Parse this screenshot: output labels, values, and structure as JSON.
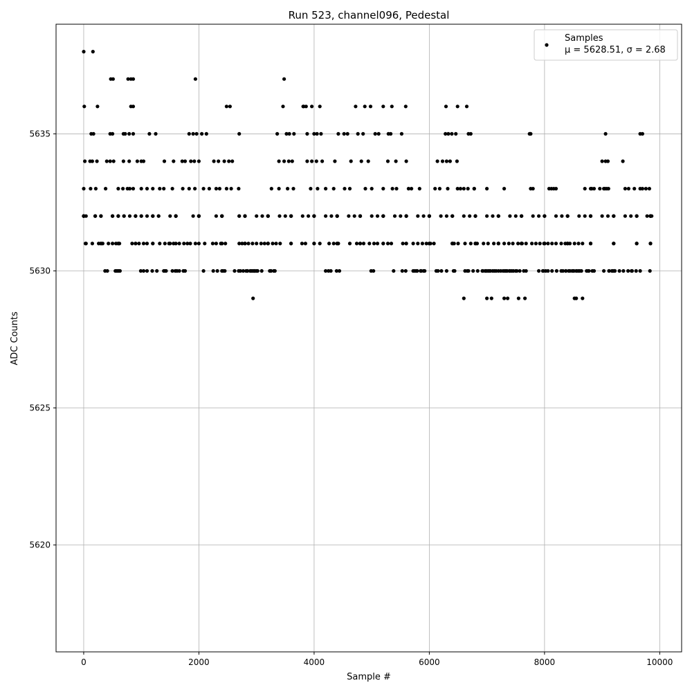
{
  "chart_data": {
    "type": "scatter",
    "title": "Run 523, channel096, Pedestal",
    "xlabel": "Sample #",
    "ylabel": "ADC Counts",
    "xlim": [
      -480,
      10380
    ],
    "ylim": [
      5616.1,
      5639.0
    ],
    "xticks": [
      0,
      2000,
      4000,
      6000,
      8000,
      10000
    ],
    "xtick_labels": [
      "0",
      "2000",
      "4000",
      "6000",
      "8000",
      "10000"
    ],
    "yticks": [
      5620,
      5625,
      5630,
      5635
    ],
    "ytick_labels": [
      "5620",
      "5625",
      "5630",
      "5635"
    ],
    "grid": true,
    "marker_color": "#000000",
    "legend": {
      "placement": "top-right",
      "entry": "Samples",
      "stats": "μ = 5628.51, σ = 2.68"
    },
    "series": [
      {
        "name": "Samples",
        "x": [
          0,
          160,
          770,
          1940,
          470,
          510,
          820,
          860,
          3480,
          3810,
          5350,
          6290,
          6490,
          10,
          240,
          820,
          860,
          2480,
          2540,
          3460,
          3820,
          3860,
          3960,
          4100,
          4720,
          4880,
          4980,
          5200,
          5590,
          6650,
          7750,
          9060,
          9660,
          9700,
          130,
          170,
          460,
          500,
          690,
          720,
          790,
          860,
          1140,
          1250,
          1830,
          1900,
          1960,
          2050,
          2130,
          2700,
          3360,
          3520,
          3570,
          3650,
          3880,
          4000,
          4050,
          4120,
          4420,
          4520,
          4580,
          4760,
          4850,
          5060,
          5120,
          5290,
          5330,
          5520,
          6280,
          6330,
          6390,
          6460,
          6680,
          6720,
          7740,
          7760,
          9000,
          9060,
          9100,
          9360,
          20,
          110,
          150,
          230,
          400,
          460,
          520,
          690,
          790,
          930,
          1000,
          1040,
          1400,
          1560,
          1710,
          1760,
          1860,
          1920,
          2000,
          2260,
          2340,
          2440,
          2520,
          2580,
          3390,
          3480,
          3560,
          3620,
          3880,
          3960,
          4040,
          4140,
          4360,
          4640,
          4820,
          4940,
          5280,
          5420,
          5600,
          6140,
          6230,
          6300,
          6360,
          6480,
          6600,
          6780,
          7760,
          8080,
          8200,
          8700,
          8800,
          9030,
          9080,
          9560,
          9660,
          9760,
          9820,
          0,
          120,
          210,
          380,
          600,
          680,
          760,
          800,
          860,
          1000,
          1100,
          1200,
          1320,
          1390,
          1540,
          1720,
          1830,
          1930,
          2080,
          2180,
          2300,
          2360,
          2480,
          2560,
          2690,
          3260,
          3390,
          3540,
          3640,
          3940,
          4060,
          4200,
          4340,
          4530,
          4620,
          4890,
          5000,
          5200,
          5360,
          5430,
          5640,
          5690,
          5830,
          6100,
          6180,
          6320,
          6490,
          6540,
          6670,
          6780,
          7000,
          7300,
          7800,
          8120,
          8160,
          8820,
          8860,
          8960,
          9050,
          9110,
          9400,
          9460,
          9700,
          9780,
          9860,
          0,
          200,
          500,
          700,
          1000,
          1300,
          1600,
          2000,
          2400,
          2800,
          3200,
          3600,
          4000,
          4400,
          4800,
          5200,
          5600,
          6000,
          6400,
          6800,
          7200,
          7600,
          8000,
          8400,
          8800,
          9200,
          9600,
          9840,
          0,
          200,
          500,
          700,
          1000,
          1300,
          1600,
          2000,
          2400,
          2700,
          3000,
          3400,
          3800,
          4200,
          4600,
          5000,
          5400,
          5800,
          6200,
          6600,
          7000,
          7400,
          7800,
          8200,
          8600,
          9000,
          9400,
          9840,
          0,
          200,
          500,
          800,
          1100,
          1500,
          1900,
          2300,
          2700,
          3100,
          3500,
          3900,
          4300,
          4700,
          5100,
          5500,
          5900,
          6300,
          6700,
          7100,
          7500,
          7900,
          8300,
          8700,
          9100,
          9500,
          9840,
          0,
          300,
          600,
          900,
          1200,
          1600,
          2000,
          2400,
          2800,
          3200,
          3600,
          4000,
          4400,
          4800,
          5200,
          5600,
          6000,
          6400,
          6800,
          7200,
          7600,
          8000,
          8400,
          8800,
          9200,
          9600,
          9840,
          0,
          300,
          600,
          900,
          1200,
          1600,
          2000,
          2400,
          2800,
          3200,
          3600,
          4000,
          4400,
          4800,
          5200,
          5600,
          6000,
          6400,
          6800,
          7200,
          7600,
          8000,
          8400,
          8800,
          9200,
          9600,
          9840,
          40,
          300,
          600,
          900,
          1200,
          1600,
          2000,
          2400,
          2800,
          3200,
          3600,
          4000,
          4400,
          4800,
          5200,
          5600,
          6000,
          6400,
          6800,
          7200,
          7600,
          8000,
          8400,
          8800,
          9200,
          9600,
          9840,
          30,
          300,
          600,
          900,
          1200,
          1600,
          2000,
          2400,
          2800,
          3200,
          3600,
          4000,
          4400,
          4800,
          5200,
          5600,
          6000,
          6400,
          6800,
          7200,
          7600,
          8000,
          8400,
          8800,
          9200,
          9600,
          9840,
          40,
          300,
          600,
          900,
          1200,
          1500,
          1800,
          2100,
          2400,
          2800,
          3200,
          3600,
          4000,
          4400,
          4800,
          5200,
          5600,
          6000,
          6400,
          6800,
          7200,
          7600,
          8000,
          8400,
          8800,
          9200,
          9600,
          9840,
          150,
          260,
          330,
          430,
          500,
          560,
          620,
          840,
          960,
          1040,
          1100,
          1320,
          1410,
          1480,
          1560,
          1660,
          1740,
          1850,
          1940,
          2240,
          2300,
          2380,
          2460,
          2700,
          2750,
          2800,
          2860,
          2930,
          3000,
          3080,
          3140,
          3200,
          3280,
          3340,
          3410,
          3790,
          3850,
          4100,
          4260,
          4340,
          4420,
          4620,
          4740,
          4860,
          4960,
          5040,
          5100,
          5280,
          5340,
          5540,
          5720,
          5800,
          5880,
          5950,
          6020,
          6080,
          6430,
          6500,
          6620,
          6720,
          6830,
          6940,
          7020,
          7120,
          7200,
          7300,
          7380,
          7450,
          7540,
          7610,
          7680,
          7780,
          7850,
          7920,
          7990,
          8060,
          8130,
          8200,
          8290,
          8360,
          8440,
          8520,
          8590,
          8660,
          8730,
          9030,
          9120,
          9220,
          9300,
          9370,
          9450,
          9520,
          9590,
          9660,
          9830,
          370,
          410,
          550,
          590,
          630,
          990,
          1040,
          1100,
          1270,
          1390,
          1430,
          1540,
          1590,
          1760,
          2250,
          2320,
          2400,
          2450,
          2620,
          2690,
          2770,
          2840,
          2900,
          2960,
          3020,
          3090,
          3230,
          3300,
          4250,
          4440,
          4990,
          5720,
          5790,
          5850,
          5920,
          6120,
          6300,
          6680,
          6760,
          6840,
          6920,
          6990,
          7060,
          7130,
          7200,
          7280,
          7350,
          7430,
          7500,
          7570,
          7640,
          7900,
          7980,
          8060,
          8130,
          8210,
          8290,
          8370,
          8440,
          8510,
          8590,
          8760,
          8830,
          9120,
          9190,
          570,
          610,
          1190,
          1410,
          1620,
          1660,
          1730,
          2080,
          2420,
          2720,
          2840,
          2890,
          2930,
          2970,
          3010,
          3250,
          4200,
          4390,
          5030,
          5380,
          5590,
          5750,
          5860,
          5900,
          6210,
          6440,
          6620,
          6930,
          6980,
          7040,
          7100,
          7160,
          7240,
          7310,
          7390,
          7460,
          7520,
          7970,
          8020,
          8370,
          8420,
          8480,
          8550,
          8610,
          8770,
          8860,
          9170,
          9220,
          9510,
          2820,
          2910,
          2950,
          3000,
          3250,
          3320,
          5530,
          5780,
          5850,
          6420,
          6660,
          6970,
          7020,
          7330,
          7400,
          7680,
          8320,
          8500,
          8560,
          8640,
          9190,
          2970,
          4290,
          6150,
          6600,
          7000,
          7080,
          7300,
          7360,
          7550,
          7660,
          8520,
          2940,
          8660,
          8550
        ]
      }
    ]
  }
}
